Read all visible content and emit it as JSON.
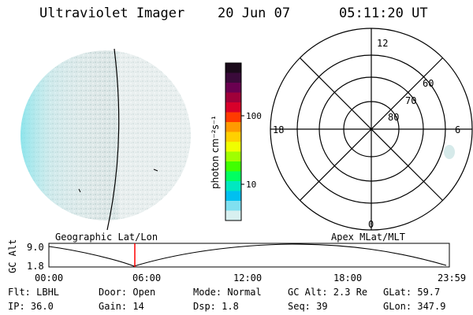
{
  "header": {
    "title": "Ultraviolet Imager",
    "date": "20 Jun 07",
    "time": "05:11:20 UT"
  },
  "colorbar": {
    "unit_label": "photon cm⁻²s⁻¹",
    "ticks": [
      "100",
      "10"
    ],
    "colors": [
      "#1a0a1a",
      "#3a0a3a",
      "#6a0050",
      "#a0003a",
      "#d8002a",
      "#ff3a00",
      "#ff9a00",
      "#ffd000",
      "#f0ff00",
      "#a0ff00",
      "#40ff00",
      "#00ff60",
      "#00e8c0",
      "#00c0f0",
      "#80e0f0",
      "#d8f0f0"
    ]
  },
  "polar_plot": {
    "mlt_labels": {
      "top": "12",
      "bottom": "0",
      "left": "18",
      "right": "6"
    },
    "lat_labels": [
      "60",
      "70",
      "80"
    ]
  },
  "geo_label": "Geographic Lat/Lon",
  "apex_label": "Apex MLat/MLT",
  "orbit": {
    "ylabel": "GC Alt",
    "yticks": [
      "9.0",
      "1.8"
    ],
    "xticks": [
      "00:00",
      "06:00",
      "12:00",
      "18:00",
      "23:59"
    ],
    "marker_color": "#ff0000"
  },
  "info": {
    "row1": {
      "flt": "Flt: LBHL",
      "door": "Door: Open",
      "mode": "Mode: Normal",
      "gcalt": "GC Alt: 2.3 Re",
      "glat": "GLat:  59.7"
    },
    "row2": {
      "ip": "IP: 36.0",
      "gain": "Gain: 14",
      "dsp": "Dsp:    1.8",
      "seq": "Seq: 39",
      "glon": "GLon: 347.9"
    }
  }
}
